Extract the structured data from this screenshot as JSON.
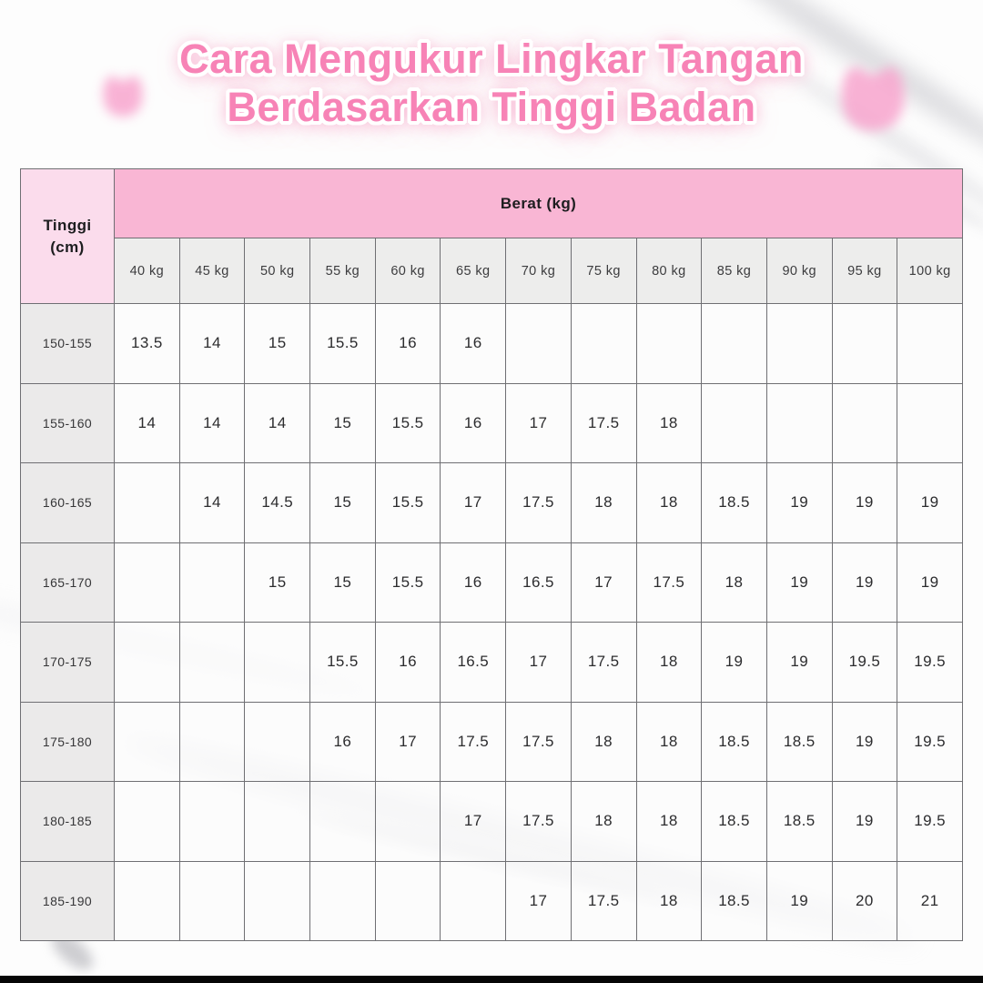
{
  "title": {
    "line1": "Cara Mengukur Lingkar Tangan",
    "line2": "Berdasarkan Tinggi Badan"
  },
  "table": {
    "corner_header_line1": "Tinggi",
    "corner_header_line2": "(cm)",
    "group_header": "Berat (kg)",
    "weight_headers": [
      "40 kg",
      "45 kg",
      "50 kg",
      "55 kg",
      "60 kg",
      "65 kg",
      "70 kg",
      "75 kg",
      "80 kg",
      "85 kg",
      "90 kg",
      "95 kg",
      "100 kg"
    ],
    "rows": [
      {
        "height_range": "150-155",
        "values": [
          "13.5",
          "14",
          "15",
          "15.5",
          "16",
          "16",
          "",
          "",
          "",
          "",
          "",
          "",
          ""
        ]
      },
      {
        "height_range": "155-160",
        "values": [
          "14",
          "14",
          "14",
          "15",
          "15.5",
          "16",
          "17",
          "17.5",
          "18",
          "",
          "",
          "",
          ""
        ]
      },
      {
        "height_range": "160-165",
        "values": [
          "",
          "14",
          "14.5",
          "15",
          "15.5",
          "17",
          "17.5",
          "18",
          "18",
          "18.5",
          "19",
          "19",
          "19"
        ]
      },
      {
        "height_range": "165-170",
        "values": [
          "",
          "",
          "15",
          "15",
          "15.5",
          "16",
          "16.5",
          "17",
          "17.5",
          "18",
          "19",
          "19",
          "19"
        ]
      },
      {
        "height_range": "170-175",
        "values": [
          "",
          "",
          "",
          "15.5",
          "16",
          "16.5",
          "17",
          "17.5",
          "18",
          "19",
          "19",
          "19.5",
          "19.5"
        ]
      },
      {
        "height_range": "175-180",
        "values": [
          "",
          "",
          "",
          "16",
          "17",
          "17.5",
          "17.5",
          "18",
          "18",
          "18.5",
          "18.5",
          "19",
          "19.5"
        ]
      },
      {
        "height_range": "180-185",
        "values": [
          "",
          "",
          "",
          "",
          "",
          "17",
          "17.5",
          "18",
          "18",
          "18.5",
          "18.5",
          "19",
          "19.5"
        ]
      },
      {
        "height_range": "185-190",
        "values": [
          "",
          "",
          "",
          "",
          "",
          "",
          "17",
          "17.5",
          "18",
          "18.5",
          "19",
          "20",
          "21"
        ]
      }
    ]
  },
  "chart_data": {
    "type": "table",
    "title": "Cara Mengukur Lingkar Tangan Berdasarkan Tinggi Badan",
    "row_axis_label": "Tinggi (cm)",
    "column_group_label": "Berat (kg)",
    "columns_kg": [
      40,
      45,
      50,
      55,
      60,
      65,
      70,
      75,
      80,
      85,
      90,
      95,
      100
    ],
    "rows": [
      {
        "tinggi_cm": "150-155",
        "lingkar_tangan": [
          13.5,
          14,
          15,
          15.5,
          16,
          16,
          null,
          null,
          null,
          null,
          null,
          null,
          null
        ]
      },
      {
        "tinggi_cm": "155-160",
        "lingkar_tangan": [
          14,
          14,
          14,
          15,
          15.5,
          16,
          17,
          17.5,
          18,
          null,
          null,
          null,
          null
        ]
      },
      {
        "tinggi_cm": "160-165",
        "lingkar_tangan": [
          null,
          14,
          14.5,
          15,
          15.5,
          17,
          17.5,
          18,
          18,
          18.5,
          19,
          19,
          19
        ]
      },
      {
        "tinggi_cm": "165-170",
        "lingkar_tangan": [
          null,
          null,
          15,
          15,
          15.5,
          16,
          16.5,
          17,
          17.5,
          18,
          19,
          19,
          19
        ]
      },
      {
        "tinggi_cm": "170-175",
        "lingkar_tangan": [
          null,
          null,
          null,
          15.5,
          16,
          16.5,
          17,
          17.5,
          18,
          19,
          19,
          19.5,
          19.5
        ]
      },
      {
        "tinggi_cm": "175-180",
        "lingkar_tangan": [
          null,
          null,
          null,
          16,
          17,
          17.5,
          17.5,
          18,
          18,
          18.5,
          18.5,
          19,
          19.5
        ]
      },
      {
        "tinggi_cm": "180-185",
        "lingkar_tangan": [
          null,
          null,
          null,
          null,
          null,
          17,
          17.5,
          18,
          18,
          18.5,
          18.5,
          19,
          19.5
        ]
      },
      {
        "tinggi_cm": "185-190",
        "lingkar_tangan": [
          null,
          null,
          null,
          null,
          null,
          null,
          17,
          17.5,
          18,
          18.5,
          19,
          20,
          21
        ]
      }
    ]
  },
  "colors": {
    "group_header_bg": "#f9b6d4",
    "corner_header_bg": "#fbdcec",
    "subheader_bg": "#ededec",
    "row_header_bg": "#ebeaea",
    "cell_border": "#6f6f73",
    "title_pink": "#f783b6",
    "cat_blob_pink": "#f8a5ce",
    "footer_bar": "#060606"
  }
}
